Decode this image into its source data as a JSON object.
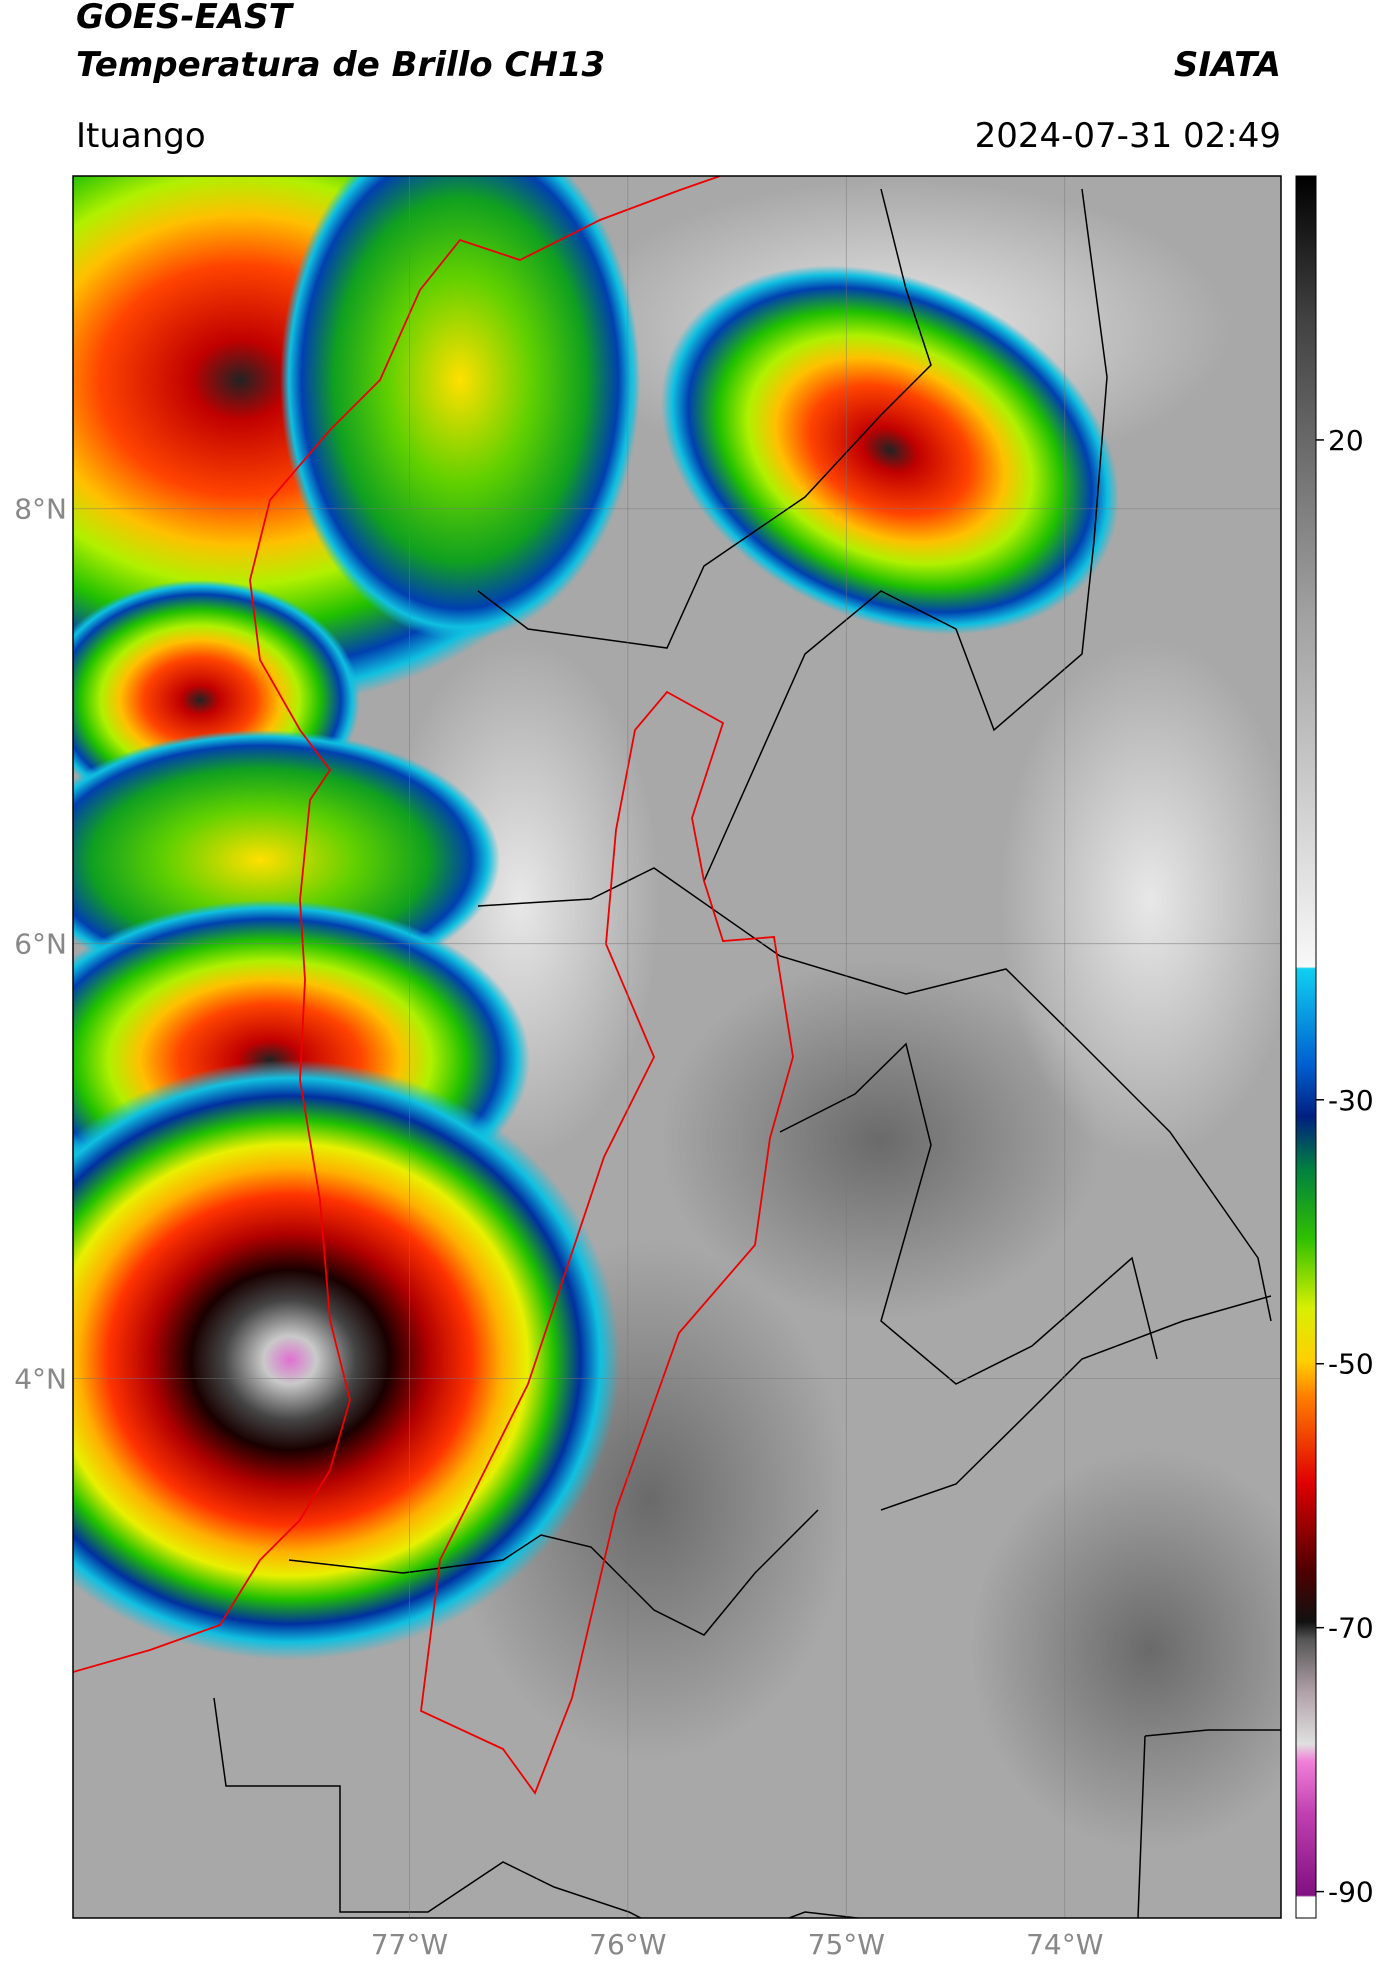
{
  "header": {
    "title_line1": "GOES-EAST",
    "title_line2": "Temperatura de Brillo CH13",
    "organization": "SIATA",
    "location": "Ituango",
    "datetime": "2024-07-31 02:49"
  },
  "map": {
    "xlim": [
      -78.54,
      -73.01
    ],
    "ylim": [
      1.52,
      9.53
    ],
    "lat_ticks": [
      {
        "value": 8,
        "label": "8°N"
      },
      {
        "value": 6,
        "label": "6°N"
      },
      {
        "value": 4,
        "label": "4°N"
      }
    ],
    "lon_ticks": [
      {
        "value": -77,
        "label": "77°W"
      },
      {
        "value": -76,
        "label": "76°W"
      },
      {
        "value": -75,
        "label": "75°W"
      },
      {
        "value": -74,
        "label": "74°W"
      }
    ]
  },
  "colorbar": {
    "lim": [
      -92,
      40
    ],
    "ticks": [
      20,
      -30,
      -50,
      -70,
      -90
    ]
  }
}
